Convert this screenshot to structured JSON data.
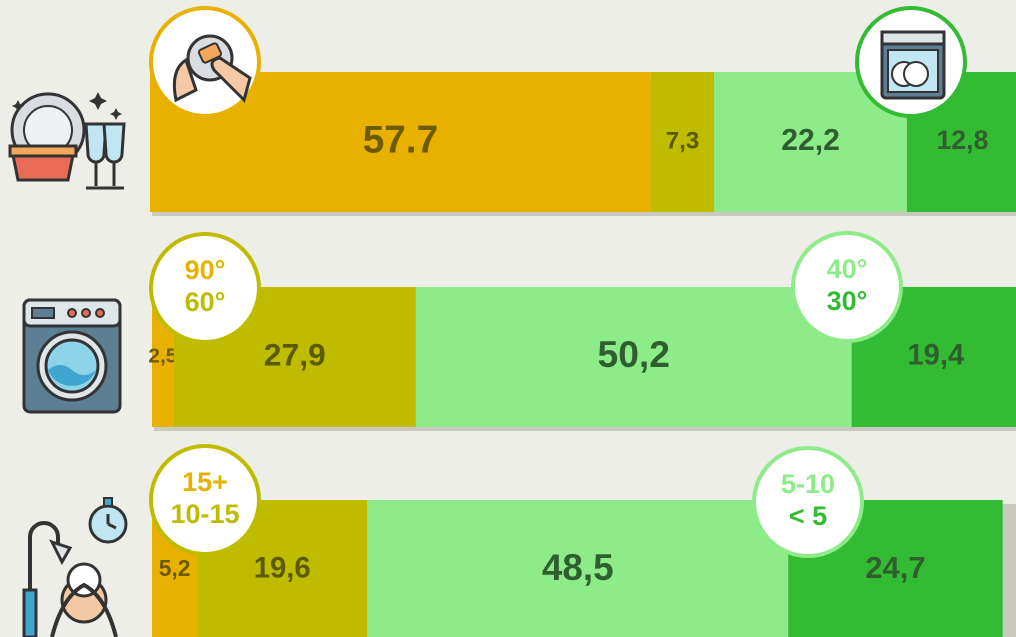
{
  "chart_data": [
    {
      "type": "stacked_bar",
      "orientation": "horizontal",
      "series": [
        {
          "color": "#e8b100",
          "values": [
            57.7
          ]
        },
        {
          "color": "#bfbc00",
          "values": [
            7.3
          ],
          "value_labels": [
            "7,3"
          ]
        },
        {
          "color": "#8eeb89",
          "values": [
            22.2
          ],
          "value_labels": [
            "22,2"
          ]
        },
        {
          "color": "#33bb33",
          "values": [
            12.8
          ],
          "value_labels": [
            "12,8"
          ]
        }
      ]
    },
    {
      "type": "stacked_bar",
      "orientation": "horizontal",
      "series": [
        {
          "name": "90°",
          "color": "#e8b100",
          "values": [
            2.5
          ],
          "value_labels": [
            "2,5"
          ]
        },
        {
          "name": "60°",
          "color": "#bfbc00",
          "values": [
            27.9
          ],
          "value_labels": [
            "27,9"
          ]
        },
        {
          "name": "40°",
          "color": "#8eeb89",
          "values": [
            50.2
          ],
          "value_labels": [
            "50,2"
          ]
        },
        {
          "name": "30°",
          "color": "#33bb33",
          "values": [
            19.4
          ],
          "value_labels": [
            "19,4"
          ]
        }
      ]
    },
    {
      "type": "stacked_bar",
      "orientation": "horizontal",
      "series": [
        {
          "name": "15+",
          "color": "#e8b100",
          "values": [
            5.2
          ],
          "value_labels": [
            "5,2"
          ]
        },
        {
          "name": "10-15",
          "color": "#bfbc00",
          "values": [
            19.6
          ],
          "value_labels": [
            "19,6"
          ]
        },
        {
          "name": "5-10",
          "color": "#8eeb89",
          "values": [
            48.5
          ],
          "value_labels": [
            "48,5"
          ]
        },
        {
          "name": "< 5",
          "color": "#33bb33",
          "values": [
            24.7
          ],
          "value_labels": [
            "24,7"
          ]
        }
      ]
    }
  ]
}
